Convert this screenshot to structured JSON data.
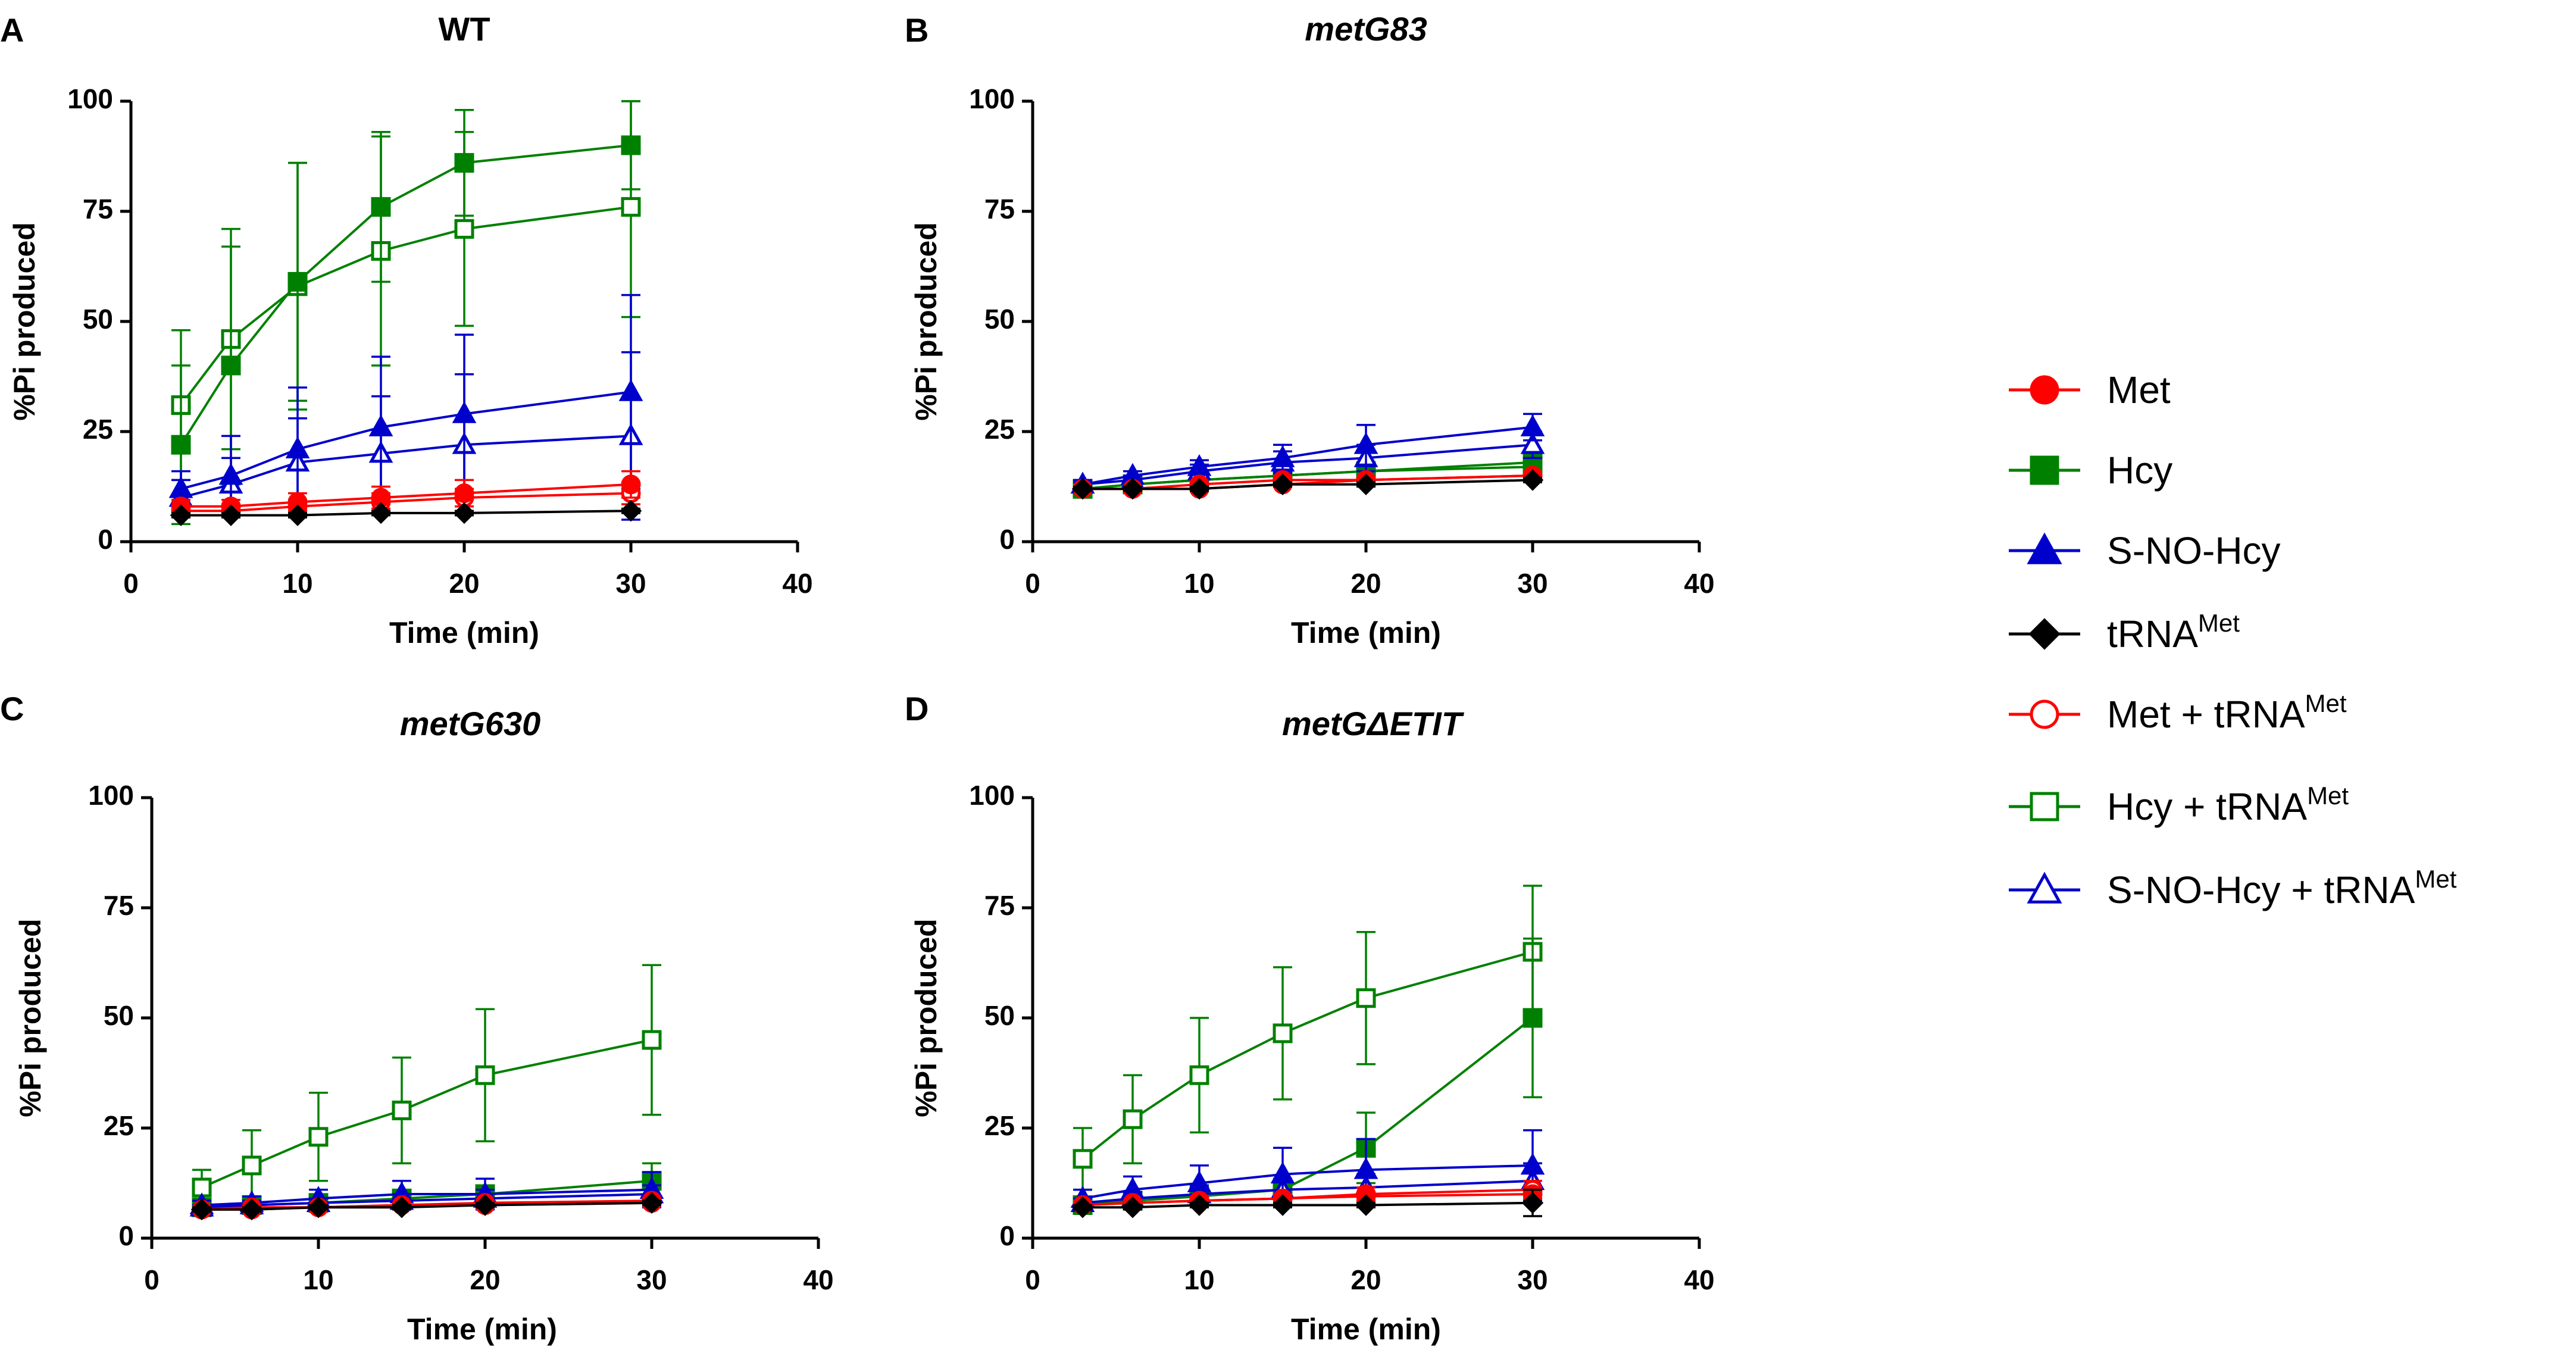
{
  "legend": [
    {
      "key": "met",
      "label": "Met",
      "sup": ""
    },
    {
      "key": "hcy",
      "label": "Hcy",
      "sup": ""
    },
    {
      "key": "snohcy",
      "label": "S-NO-Hcy",
      "sup": ""
    },
    {
      "key": "trna",
      "label": "tRNA",
      "sup": "Met"
    },
    {
      "key": "met_trna",
      "label": "Met + tRNA",
      "sup": "Met"
    },
    {
      "key": "hcy_trna",
      "label": "Hcy + tRNA",
      "sup": "Met"
    },
    {
      "key": "snohcy_trna",
      "label": "S-NO-Hcy + tRNA",
      "sup": "Met"
    }
  ],
  "series_styles": {
    "met": {
      "color": "#ff0000",
      "marker": "circle",
      "filled": true
    },
    "hcy": {
      "color": "#008000",
      "marker": "square",
      "filled": true
    },
    "snohcy": {
      "color": "#0000cc",
      "marker": "triangle",
      "filled": true
    },
    "trna": {
      "color": "#000000",
      "marker": "diamond",
      "filled": true
    },
    "met_trna": {
      "color": "#ff0000",
      "marker": "circle",
      "filled": false
    },
    "hcy_trna": {
      "color": "#008000",
      "marker": "square",
      "filled": false
    },
    "snohcy_trna": {
      "color": "#0000cc",
      "marker": "triangle",
      "filled": false
    }
  },
  "chart_data": [
    {
      "panel": "A",
      "title": "WT",
      "title_italic": false,
      "type": "line",
      "xlabel": "Time (min)",
      "ylabel": "%Pi produced",
      "xlim": [
        0,
        40
      ],
      "ylim": [
        0,
        100
      ],
      "xticks": [
        0,
        10,
        20,
        30,
        40
      ],
      "yticks": [
        0,
        25,
        50,
        75,
        100
      ],
      "x": [
        3,
        6,
        10,
        15,
        20,
        30
      ],
      "series": [
        {
          "key": "met",
          "values": [
            8,
            8,
            9,
            10,
            11,
            13
          ],
          "errors": [
            1.5,
            1.5,
            2,
            2.5,
            3,
            3
          ]
        },
        {
          "key": "hcy",
          "values": [
            22,
            40,
            59,
            76,
            86,
            90
          ],
          "errors": [
            18,
            27,
            27,
            17,
            12,
            10
          ]
        },
        {
          "key": "snohcy",
          "values": [
            12,
            15,
            21,
            26,
            29,
            34
          ],
          "errors": [
            4,
            9,
            14,
            16,
            18,
            22
          ]
        },
        {
          "key": "trna",
          "values": [
            6,
            6,
            6,
            6.5,
            6.5,
            7
          ],
          "errors": [
            0.5,
            0.5,
            0.5,
            0.5,
            0.5,
            0.5
          ]
        },
        {
          "key": "met_trna",
          "values": [
            7,
            7,
            8,
            9,
            10,
            11
          ],
          "errors": [
            1,
            1.5,
            1.5,
            2,
            2,
            2.5
          ]
        },
        {
          "key": "hcy_trna",
          "values": [
            31,
            46,
            58,
            66,
            71,
            76
          ],
          "errors": [
            17,
            25,
            28,
            26,
            22,
            25
          ]
        },
        {
          "key": "snohcy_trna",
          "values": [
            10,
            13,
            18,
            20,
            22,
            24
          ],
          "errors": [
            4,
            6,
            10,
            13,
            16,
            19
          ]
        }
      ]
    },
    {
      "panel": "B",
      "title": "metG83",
      "title_italic": true,
      "type": "line",
      "xlabel": "Time (min)",
      "ylabel": "%Pi produced",
      "xlim": [
        0,
        40
      ],
      "ylim": [
        0,
        100
      ],
      "xticks": [
        0,
        10,
        20,
        30,
        40
      ],
      "yticks": [
        0,
        25,
        50,
        75,
        100
      ],
      "x": [
        3,
        6,
        10,
        15,
        20,
        30
      ],
      "series": [
        {
          "key": "met",
          "values": [
            12,
            12,
            13,
            14,
            14,
            15
          ],
          "errors": [
            0.5,
            0.5,
            0.5,
            0.5,
            0.5,
            0.5
          ]
        },
        {
          "key": "hcy",
          "values": [
            12,
            13,
            14,
            15,
            16,
            18
          ],
          "errors": [
            0.5,
            0.5,
            1,
            1,
            1,
            1.5
          ]
        },
        {
          "key": "snohcy",
          "values": [
            13,
            15,
            17,
            19,
            22,
            26
          ],
          "errors": [
            1,
            1,
            1.5,
            3,
            4.5,
            3
          ]
        },
        {
          "key": "trna",
          "values": [
            12,
            12,
            12,
            13,
            13,
            14
          ],
          "errors": [
            0.5,
            0.5,
            0.5,
            0.5,
            0.5,
            0.5
          ]
        },
        {
          "key": "met_trna",
          "values": [
            12,
            12,
            12,
            13,
            14,
            15
          ],
          "errors": [
            0.5,
            0.5,
            0.5,
            0.5,
            0.5,
            0.5
          ]
        },
        {
          "key": "hcy_trna",
          "values": [
            12,
            13,
            14,
            15,
            16,
            17
          ],
          "errors": [
            0.5,
            0.5,
            1,
            1,
            1,
            1.5
          ]
        },
        {
          "key": "snohcy_trna",
          "values": [
            13,
            14,
            16,
            18,
            19,
            22
          ],
          "errors": [
            0.5,
            1,
            1.5,
            2.5,
            3,
            3
          ]
        }
      ]
    },
    {
      "panel": "C",
      "title": "metG630",
      "title_italic": true,
      "type": "line",
      "xlabel": "Time (min)",
      "ylabel": "%Pi produced",
      "xlim": [
        0,
        40
      ],
      "ylim": [
        0,
        100
      ],
      "xticks": [
        0,
        10,
        20,
        30,
        40
      ],
      "yticks": [
        0,
        25,
        50,
        75,
        100
      ],
      "x": [
        3,
        6,
        10,
        15,
        20,
        30
      ],
      "series": [
        {
          "key": "met",
          "values": [
            6.5,
            6.5,
            7,
            7.5,
            7.5,
            8
          ],
          "errors": [
            0.5,
            0.5,
            0.5,
            0.5,
            0.5,
            0.5
          ]
        },
        {
          "key": "hcy",
          "values": [
            7,
            7.5,
            8,
            9,
            10,
            13
          ],
          "errors": [
            0.5,
            1,
            1,
            2,
            2,
            4
          ]
        },
        {
          "key": "snohcy",
          "values": [
            7.5,
            8,
            9,
            10,
            10,
            11
          ],
          "errors": [
            1,
            1.5,
            2,
            3,
            3.5,
            4
          ]
        },
        {
          "key": "trna",
          "values": [
            6.5,
            6.5,
            7,
            7,
            7.5,
            8
          ],
          "errors": [
            0.5,
            0.5,
            0.5,
            0.5,
            0.5,
            0.5
          ]
        },
        {
          "key": "met_trna",
          "values": [
            6.5,
            7,
            7,
            7.5,
            8,
            8.5
          ],
          "errors": [
            0.5,
            0.5,
            0.5,
            0.5,
            0.5,
            0.5
          ]
        },
        {
          "key": "hcy_trna",
          "values": [
            11.5,
            16.5,
            23,
            29,
            37,
            45
          ],
          "errors": [
            4,
            8,
            10,
            12,
            15,
            17
          ]
        },
        {
          "key": "snohcy_trna",
          "values": [
            7,
            7.5,
            8,
            8.5,
            9,
            10
          ],
          "errors": [
            0.5,
            1,
            1,
            1.5,
            2,
            2
          ]
        }
      ]
    },
    {
      "panel": "D",
      "title": "metGΔETIT",
      "title_italic": true,
      "type": "line",
      "xlabel": "Time (min)",
      "ylabel": "%Pi produced",
      "xlim": [
        0,
        40
      ],
      "ylim": [
        0,
        100
      ],
      "xticks": [
        0,
        10,
        20,
        30,
        40
      ],
      "yticks": [
        0,
        25,
        50,
        75,
        100
      ],
      "x": [
        3,
        6,
        10,
        15,
        20,
        30
      ],
      "series": [
        {
          "key": "met",
          "values": [
            7.5,
            8,
            8.5,
            9,
            9.5,
            10
          ],
          "errors": [
            0.5,
            0.5,
            0.5,
            1,
            1,
            1
          ]
        },
        {
          "key": "hcy",
          "values": [
            7.5,
            8.5,
            9.5,
            11,
            20.5,
            50
          ],
          "errors": [
            1,
            1,
            1.5,
            2,
            8,
            18
          ]
        },
        {
          "key": "snohcy",
          "values": [
            9,
            11,
            12.5,
            14.5,
            15.5,
            16.5
          ],
          "errors": [
            2,
            3,
            4,
            6,
            7,
            8
          ]
        },
        {
          "key": "trna",
          "values": [
            7,
            7,
            7.5,
            7.5,
            7.5,
            8
          ],
          "errors": [
            0.5,
            0.5,
            0.5,
            0.5,
            0.5,
            3
          ]
        },
        {
          "key": "met_trna",
          "values": [
            7.5,
            8,
            8.5,
            9,
            10,
            11
          ],
          "errors": [
            0.5,
            0.5,
            1,
            1,
            1.5,
            2
          ]
        },
        {
          "key": "hcy_trna",
          "values": [
            18,
            27,
            37,
            46.5,
            54.5,
            65
          ],
          "errors": [
            7,
            10,
            13,
            15,
            15,
            15
          ]
        },
        {
          "key": "snohcy_trna",
          "values": [
            8,
            9,
            10,
            11,
            11.5,
            13
          ],
          "errors": [
            1,
            1.5,
            2,
            2.5,
            3,
            4
          ]
        }
      ]
    }
  ]
}
